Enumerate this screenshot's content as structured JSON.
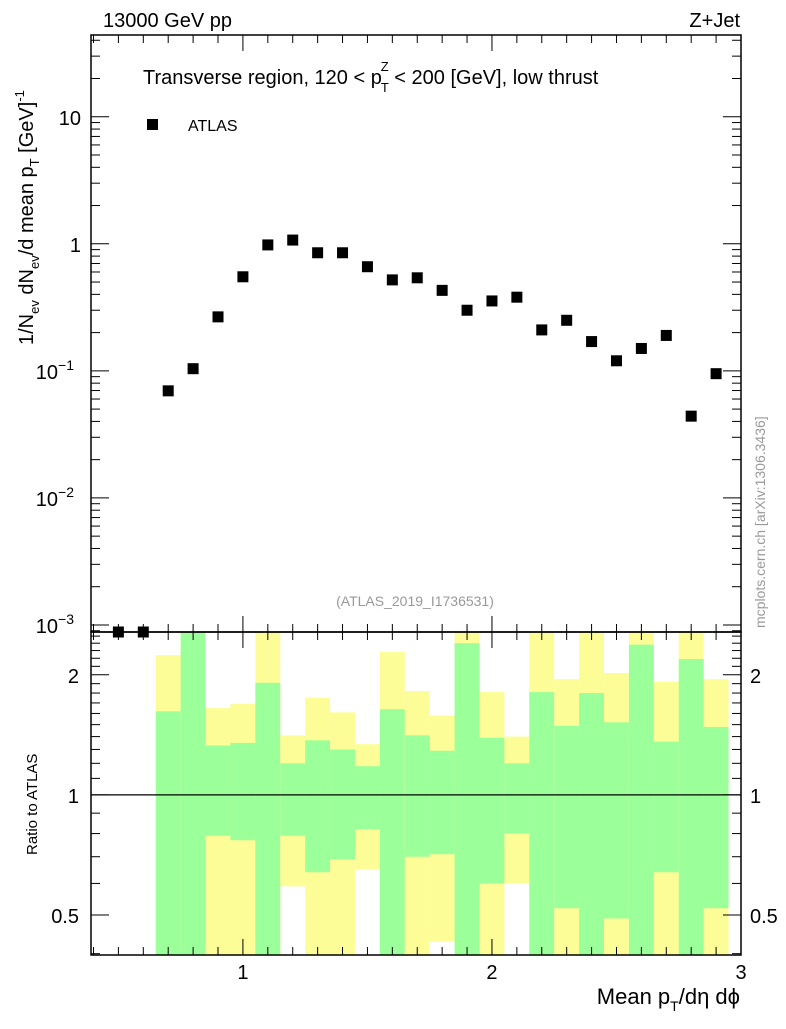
{
  "header": {
    "left": "13000 GeV pp",
    "right": "Z+Jet"
  },
  "side_label": "mcplots.cern.ch [arXiv:1306.3436]",
  "analysis_label": "(ATLAS_2019_I1736531)",
  "title": {
    "a": "Transverse region, 120 < p",
    "sub": "T",
    "sup": "Z",
    "b": " < 200 [GeV], low thrust"
  },
  "ylabel": {
    "a": "1/N",
    "s1": "ev",
    "b": " dN",
    "s2": "ev",
    "c": "/d mean p",
    "s3": "T",
    "d": " [GeV]",
    "sup": "-1"
  },
  "ratio_ylabel": "Ratio to ATLAS",
  "xlabel": {
    "a": "Mean p",
    "sub": "T",
    "b": "/dη dϕ"
  },
  "colors": {
    "green": "#9bff9a",
    "yellow": "#fdfd98",
    "marker": "#000000"
  },
  "chart_data": {
    "type": "scatter",
    "xlim": [
      0.39,
      3.0
    ],
    "ylim": [
      0.00088,
      44
    ],
    "yscale": "log",
    "xticks": [
      "1",
      "2",
      "3"
    ],
    "yticks": [
      {
        "v": 10,
        "base": "10",
        "exp": ""
      },
      {
        "v": 1,
        "base": "1",
        "exp": ""
      },
      {
        "v": 0.1,
        "base": "10",
        "exp": "−1"
      },
      {
        "v": 0.01,
        "base": "10",
        "exp": "−2"
      },
      {
        "v": 0.001,
        "base": "10",
        "exp": "−3"
      }
    ],
    "legend": {
      "label": "ATLAS",
      "placement": "top-left"
    },
    "series": [
      {
        "name": "ATLAS",
        "x": [
          0.5,
          0.6,
          0.7,
          0.8,
          0.9,
          1.0,
          1.1,
          1.2,
          1.3,
          1.4,
          1.5,
          1.6,
          1.7,
          1.8,
          1.9,
          2.0,
          2.1,
          2.2,
          2.3,
          2.4,
          2.5,
          2.6,
          2.7,
          2.8,
          2.9
        ],
        "y": [
          0.00088,
          0.00088,
          0.0696,
          0.104,
          0.266,
          0.55,
          0.98,
          1.07,
          0.85,
          0.85,
          0.66,
          0.52,
          0.54,
          0.43,
          0.3,
          0.355,
          0.38,
          0.21,
          0.25,
          0.17,
          0.12,
          0.15,
          0.19,
          0.044,
          0.095
        ]
      }
    ],
    "ratio": {
      "ylim": [
        0.397,
        2.56
      ],
      "yticks": [
        "0.5",
        "1",
        "2"
      ],
      "reference": 1,
      "bin_edges": [
        0.65,
        0.75,
        0.85,
        0.95,
        1.05,
        1.15,
        1.25,
        1.35,
        1.45,
        1.55,
        1.65,
        1.75,
        1.85,
        1.95,
        2.05,
        2.15,
        2.25,
        2.35,
        2.45,
        2.55,
        2.65,
        2.75,
        2.85,
        2.95
      ],
      "green_band": {
        "upper": [
          1.62,
          3,
          1.33,
          1.35,
          1.91,
          1.2,
          1.37,
          1.3,
          1.18,
          1.64,
          1.41,
          1.29,
          2.4,
          1.39,
          1.2,
          1.81,
          1.49,
          1.8,
          1.52,
          2.38,
          1.36,
          2.19,
          1.48
        ],
        "lower": [
          0.3,
          0.3,
          0.79,
          0.77,
          0.3,
          0.79,
          0.64,
          0.69,
          0.82,
          0.3,
          0.7,
          0.71,
          0.3,
          0.6,
          0.8,
          0.3,
          0.52,
          0.3,
          0.49,
          0.3,
          0.64,
          0.3,
          0.52
        ]
      },
      "yellow_band": {
        "upper": [
          2.24,
          3,
          1.65,
          1.69,
          3,
          1.41,
          1.75,
          1.61,
          1.34,
          2.28,
          1.82,
          1.58,
          3,
          1.81,
          1.4,
          3,
          1.95,
          3,
          2.02,
          3,
          1.92,
          3,
          1.95
        ],
        "lower": [
          0.3,
          0.3,
          0.3,
          0.3,
          0.3,
          0.59,
          0.3,
          0.3,
          0.65,
          0.3,
          0.3,
          0.43,
          0.3,
          0.3,
          0.6,
          0.3,
          0.3,
          0.3,
          0.3,
          0.3,
          0.3,
          0.3,
          0.3
        ]
      }
    }
  }
}
